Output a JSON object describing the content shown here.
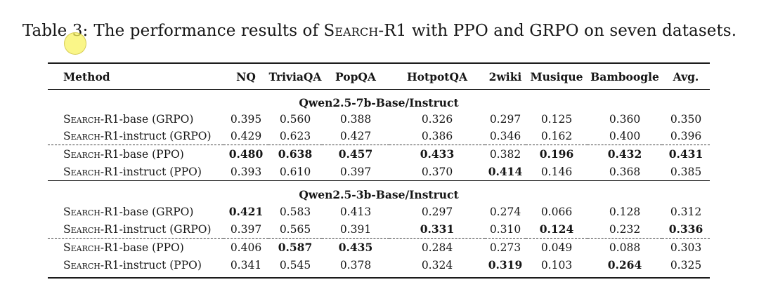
{
  "caption": {
    "label": "Table 3:",
    "before": "The performance results of ",
    "smallcaps": "Search",
    "after": "-R1 with PPO and GRPO on seven datasets."
  },
  "click_indicator": {
    "fill_color": "#f8f35a",
    "border_color": "#d2c850"
  },
  "table": {
    "columns": [
      "Method",
      "NQ",
      "TriviaQA",
      "PopQA",
      "HotpotQA",
      "2wiki",
      "Musique",
      "Bamboogle",
      "Avg."
    ],
    "sections": [
      {
        "header": "Qwen2.5-7b-Base/Instruct",
        "rows": [
          {
            "method": {
              "sc": "Search",
              "rest": "-R1-base (GRPO)"
            },
            "values": [
              "0.395",
              "0.560",
              "0.388",
              "0.326",
              "0.297",
              "0.125",
              "0.360",
              "0.350"
            ],
            "bold": []
          },
          {
            "method": {
              "sc": "Search",
              "rest": "-R1-instruct (GRPO)"
            },
            "values": [
              "0.429",
              "0.623",
              "0.427",
              "0.386",
              "0.346",
              "0.162",
              "0.400",
              "0.396"
            ],
            "bold": []
          },
          {
            "method": {
              "sc": "Search",
              "rest": "-R1-base (PPO)"
            },
            "values": [
              "0.480",
              "0.638",
              "0.457",
              "0.433",
              "0.382",
              "0.196",
              "0.432",
              "0.431"
            ],
            "bold": [
              0,
              1,
              2,
              3,
              5,
              6,
              7
            ],
            "dashed_top": true
          },
          {
            "method": {
              "sc": "Search",
              "rest": "-R1-instruct (PPO)"
            },
            "values": [
              "0.393",
              "0.610",
              "0.397",
              "0.370",
              "0.414",
              "0.146",
              "0.368",
              "0.385"
            ],
            "bold": [
              4
            ]
          }
        ]
      },
      {
        "header": "Qwen2.5-3b-Base/Instruct",
        "rows": [
          {
            "method": {
              "sc": "Search",
              "rest": "-R1-base (GRPO)"
            },
            "values": [
              "0.421",
              "0.583",
              "0.413",
              "0.297",
              "0.274",
              "0.066",
              "0.128",
              "0.312"
            ],
            "bold": [
              0
            ]
          },
          {
            "method": {
              "sc": "Search",
              "rest": "-R1-instruct (GRPO)"
            },
            "values": [
              "0.397",
              "0.565",
              "0.391",
              "0.331",
              "0.310",
              "0.124",
              "0.232",
              "0.336"
            ],
            "bold": [
              3,
              5,
              7
            ]
          },
          {
            "method": {
              "sc": "Search",
              "rest": "-R1-base (PPO)"
            },
            "values": [
              "0.406",
              "0.587",
              "0.435",
              "0.284",
              "0.273",
              "0.049",
              "0.088",
              "0.303"
            ],
            "bold": [
              1,
              2
            ],
            "dashed_top": true
          },
          {
            "method": {
              "sc": "Search",
              "rest": "-R1-instruct (PPO)"
            },
            "values": [
              "0.341",
              "0.545",
              "0.378",
              "0.324",
              "0.319",
              "0.103",
              "0.264",
              "0.325"
            ],
            "bold": [
              4,
              6
            ]
          }
        ]
      }
    ]
  }
}
